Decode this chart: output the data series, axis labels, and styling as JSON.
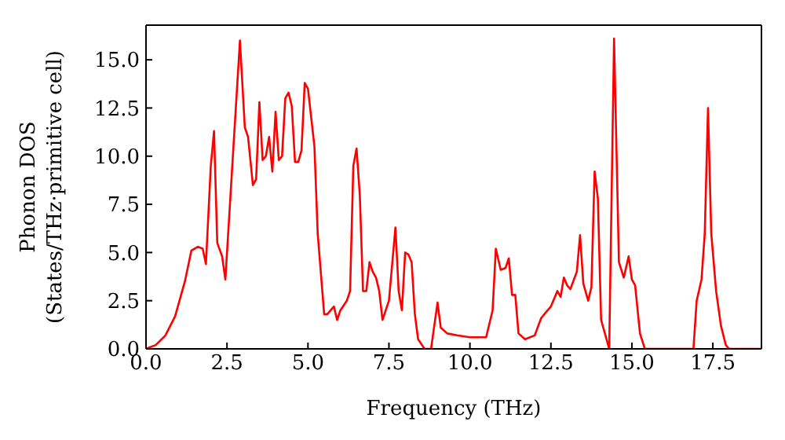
{
  "chart_data": {
    "type": "line",
    "xlabel": "Frequency (THz)",
    "ylabel": "Phonon DOS\n(States/THz·primitive cell)",
    "x": [
      0,
      0.3,
      0.6,
      0.9,
      1.2,
      1.4,
      1.6,
      1.75,
      1.85,
      2.0,
      2.1,
      2.2,
      2.35,
      2.45,
      2.7,
      2.9,
      3.05,
      3.15,
      3.3,
      3.4,
      3.5,
      3.6,
      3.7,
      3.8,
      3.9,
      4.0,
      4.1,
      4.2,
      4.3,
      4.4,
      4.5,
      4.6,
      4.7,
      4.8,
      4.9,
      5.0,
      5.2,
      5.3,
      5.5,
      5.6,
      5.7,
      5.8,
      5.9,
      6.0,
      6.2,
      6.3,
      6.4,
      6.5,
      6.6,
      6.7,
      6.8,
      6.9,
      7.0,
      7.1,
      7.2,
      7.3,
      7.5,
      7.7,
      7.8,
      7.9,
      8.0,
      8.1,
      8.2,
      8.3,
      8.4,
      8.6,
      8.8,
      9.0,
      9.1,
      9.3,
      9.6,
      10.0,
      10.5,
      10.7,
      10.8,
      10.95,
      11.1,
      11.2,
      11.3,
      11.4,
      11.5,
      11.7,
      12.0,
      12.2,
      12.4,
      12.5,
      12.7,
      12.8,
      12.9,
      13.0,
      13.1,
      13.3,
      13.4,
      13.5,
      13.65,
      13.75,
      13.85,
      13.95,
      14.05,
      14.3,
      14.45,
      14.6,
      14.75,
      14.9,
      15.0,
      15.1,
      15.25,
      15.4,
      16.9,
      17.0,
      17.15,
      17.25,
      17.35,
      17.45,
      17.6,
      17.75,
      17.9,
      18.0,
      19.0
    ],
    "series": [
      {
        "color": "#ff0000",
        "values": [
          0,
          0.2,
          0.7,
          1.7,
          3.5,
          5.1,
          5.3,
          5.2,
          4.4,
          9.5,
          11.3,
          5.5,
          4.8,
          3.6,
          10.5,
          16.0,
          11.5,
          11.0,
          8.5,
          8.8,
          12.8,
          9.8,
          10.0,
          11.0,
          9.2,
          12.3,
          9.8,
          10.0,
          13.0,
          13.3,
          12.6,
          9.7,
          9.7,
          10.3,
          13.8,
          13.5,
          10.5,
          6.0,
          1.8,
          1.8,
          2.0,
          2.2,
          1.5,
          2.0,
          2.5,
          3.0,
          9.5,
          10.4,
          8.0,
          3.0,
          3.0,
          4.5,
          4.0,
          3.7,
          3.0,
          1.5,
          2.5,
          6.3,
          3.0,
          2.0,
          5.0,
          4.9,
          4.5,
          1.8,
          0.5,
          0,
          0,
          2.4,
          1.1,
          0.8,
          0.7,
          0.6,
          0.6,
          2.0,
          5.2,
          4.1,
          4.2,
          4.7,
          2.8,
          2.8,
          0.8,
          0.5,
          0.7,
          1.6,
          2.0,
          2.2,
          3.0,
          2.7,
          3.7,
          3.3,
          3.1,
          4.0,
          5.9,
          3.4,
          2.5,
          3.2,
          9.2,
          7.8,
          1.5,
          0,
          16.1,
          4.5,
          3.7,
          4.8,
          3.6,
          3.3,
          0.8,
          0,
          0,
          2.5,
          3.6,
          6.0,
          12.5,
          6.0,
          3.0,
          1.2,
          0.2,
          0,
          0
        ]
      }
    ],
    "xlim": [
      0,
      19
    ],
    "xticks": [
      {
        "value": 0,
        "label": "0.0"
      },
      {
        "value": 2.5,
        "label": "2.5"
      },
      {
        "value": 5,
        "label": "5.0"
      },
      {
        "value": 7.5,
        "label": "7.5"
      },
      {
        "value": 10,
        "label": "10.0"
      },
      {
        "value": 12.5,
        "label": "12.5"
      },
      {
        "value": 15,
        "label": "15.0"
      },
      {
        "value": 17.5,
        "label": "17.5"
      }
    ],
    "ylim": [
      0,
      16.8
    ],
    "yticks": [
      {
        "value": 0,
        "label": "0.0"
      },
      {
        "value": 2.5,
        "label": "2.5"
      },
      {
        "value": 5,
        "label": "5.0"
      },
      {
        "value": 7.5,
        "label": "7.5"
      },
      {
        "value": 10,
        "label": "10.0"
      },
      {
        "value": 12.5,
        "label": "12.5"
      },
      {
        "value": 15,
        "label": "15.0"
      }
    ],
    "grid": false,
    "legend": false,
    "marker": "none",
    "line_style": "solid"
  }
}
